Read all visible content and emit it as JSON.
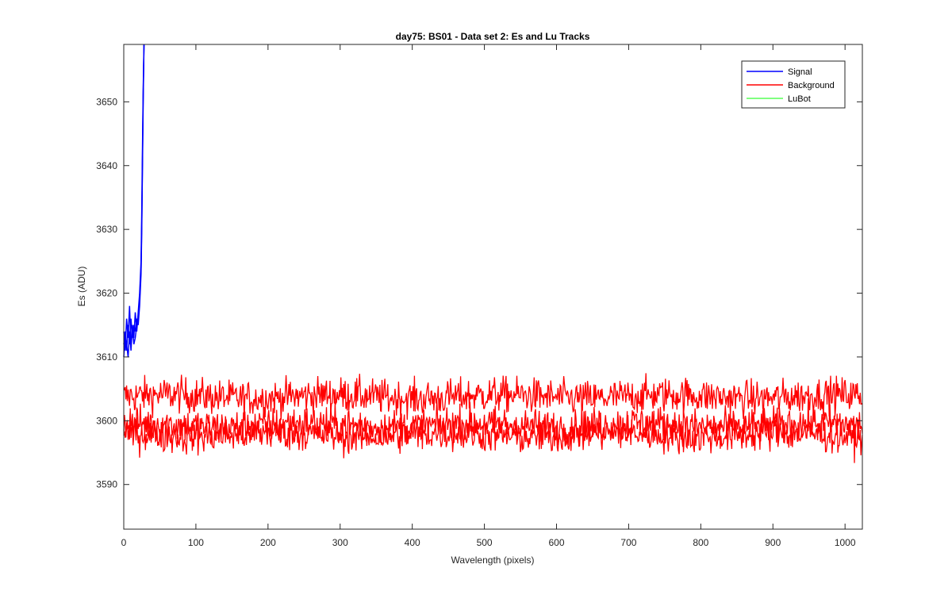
{
  "chart_data": {
    "type": "line",
    "title": "day75: BS01 - Data set 2: Es and Lu Tracks",
    "xlabel": "Wavelength (pixels)",
    "ylabel": "Es (ADU)",
    "xlim": [
      0,
      1024
    ],
    "ylim": [
      3583,
      3659
    ],
    "x_ticks": [
      0,
      100,
      200,
      300,
      400,
      500,
      600,
      700,
      800,
      900,
      1000
    ],
    "y_ticks": [
      3590,
      3600,
      3610,
      3620,
      3630,
      3640,
      3650
    ],
    "grid": false,
    "legend_position": "top-right",
    "legend": [
      "Signal",
      "Background",
      "LuBot"
    ],
    "colors": {
      "Signal": "#0000ff",
      "Background": "#ff0000",
      "LuBot": "#00ff00"
    },
    "series": [
      {
        "name": "Signal",
        "color": "#0000ff",
        "description_points": [
          [
            0,
            3612
          ],
          [
            3,
            3615
          ],
          [
            6,
            3611
          ],
          [
            9,
            3616
          ],
          [
            12,
            3613
          ],
          [
            15,
            3617
          ],
          [
            18,
            3614
          ],
          [
            20,
            3616
          ],
          [
            22,
            3618
          ],
          [
            24,
            3622
          ],
          [
            26,
            3632
          ],
          [
            27,
            3645
          ],
          [
            28,
            3659
          ]
        ],
        "traces": [
          [
            [
              0,
              3612
            ],
            [
              2,
              3614
            ],
            [
              4,
              3611
            ],
            [
              6,
              3615
            ],
            [
              8,
              3612
            ],
            [
              10,
              3616
            ],
            [
              12,
              3613
            ],
            [
              14,
              3615
            ],
            [
              16,
              3614
            ],
            [
              18,
              3616
            ],
            [
              20,
              3615
            ],
            [
              22,
              3618
            ],
            [
              24,
              3623
            ],
            [
              25,
              3630
            ],
            [
              26,
              3640
            ],
            [
              27,
              3650
            ],
            [
              28,
              3659
            ]
          ],
          [
            [
              0,
              3614
            ],
            [
              2,
              3611
            ],
            [
              4,
              3616
            ],
            [
              6,
              3613
            ],
            [
              8,
              3618
            ],
            [
              10,
              3612
            ],
            [
              12,
              3614
            ],
            [
              14,
              3613
            ],
            [
              16,
              3617
            ],
            [
              18,
              3614
            ],
            [
              20,
              3617
            ],
            [
              22,
              3620
            ],
            [
              24,
              3625
            ],
            [
              25,
              3633
            ],
            [
              26,
              3643
            ],
            [
              27,
              3652
            ],
            [
              28,
              3659
            ]
          ],
          [
            [
              0,
              3610
            ],
            [
              2,
              3613
            ],
            [
              4,
              3612
            ],
            [
              6,
              3610
            ],
            [
              8,
              3614
            ],
            [
              10,
              3611
            ],
            [
              12,
              3615
            ],
            [
              14,
              3612
            ],
            [
              16,
              3613
            ],
            [
              18,
              3615
            ],
            [
              20,
              3616
            ],
            [
              22,
              3619
            ],
            [
              24,
              3624
            ],
            [
              25,
              3631
            ],
            [
              26,
              3641
            ],
            [
              27,
              3651
            ],
            [
              28,
              3659
            ]
          ]
        ]
      },
      {
        "name": "Background",
        "color": "#ff0000",
        "band_levels": [
          3603.8,
          3599.3,
          3597.8
        ],
        "band_noise": 1.4,
        "x_range": [
          0,
          1024
        ]
      },
      {
        "name": "LuBot",
        "color": "#00ff00",
        "values": []
      }
    ]
  }
}
